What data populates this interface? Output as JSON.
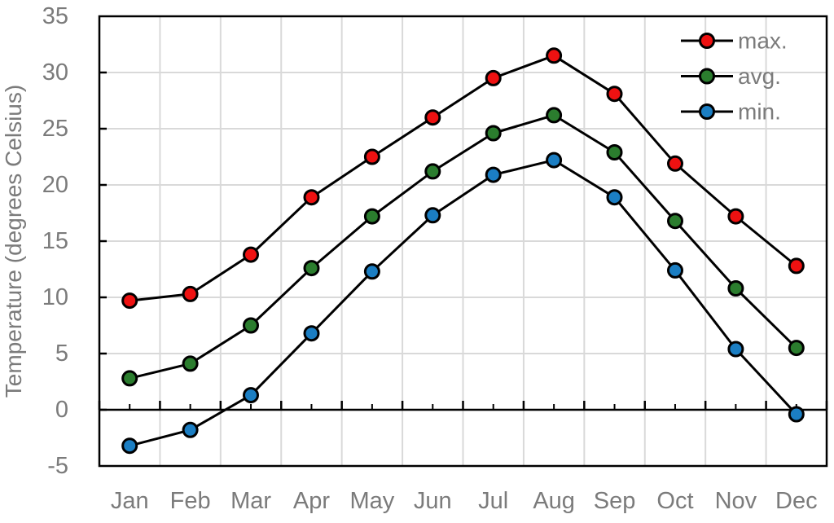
{
  "colors": {
    "grid": "#d9d9d9",
    "axis": "#000000",
    "labels": "#7b7b7b",
    "background": "#ffffff"
  },
  "chart_data": {
    "type": "line",
    "title": "",
    "xlabel": "",
    "ylabel": "Temperature (degrees Celsius)",
    "categories": [
      "Jan",
      "Feb",
      "Mar",
      "Apr",
      "May",
      "Jun",
      "Jul",
      "Aug",
      "Sep",
      "Oct",
      "Nov",
      "Dec"
    ],
    "series": [
      {
        "name": "max.",
        "color": "#ee1111",
        "values": [
          9.7,
          10.3,
          13.8,
          18.9,
          22.5,
          26.0,
          29.5,
          31.5,
          28.1,
          21.9,
          17.2,
          12.8
        ]
      },
      {
        "name": "avg.",
        "color": "#2b7d2e",
        "values": [
          2.8,
          4.1,
          7.5,
          12.6,
          17.2,
          21.2,
          24.6,
          26.2,
          22.9,
          16.8,
          10.8,
          5.5
        ]
      },
      {
        "name": "min.",
        "color": "#1b7ec3",
        "values": [
          -3.2,
          -1.8,
          1.3,
          6.8,
          12.3,
          17.3,
          20.9,
          22.2,
          18.9,
          12.4,
          5.4,
          -0.4
        ]
      }
    ],
    "ylim": [
      -5,
      35
    ],
    "yticks": [
      35,
      30,
      25,
      20,
      15,
      10,
      5,
      0,
      -5
    ],
    "ytick_step": 5,
    "grid": true,
    "marker": "circle",
    "line_color": "#000000",
    "legend_position": "top-right",
    "legend_labels": [
      "max.",
      "avg.",
      "min."
    ]
  }
}
